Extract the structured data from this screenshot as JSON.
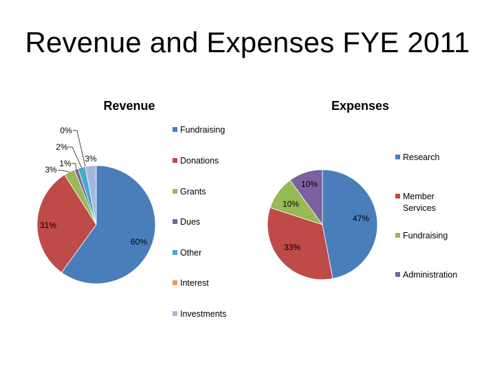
{
  "page": {
    "title": "Revenue and Expenses FYE 2011"
  },
  "chart_data": [
    {
      "type": "pie",
      "title": "Revenue",
      "categories": [
        "Fundraising",
        "Donations",
        "Grants",
        "Dues",
        "Other",
        "Interest",
        "Investments"
      ],
      "values": [
        60,
        31,
        3,
        1,
        2,
        0,
        3
      ],
      "data_labels": [
        "60%",
        "31%",
        "3%",
        "1%",
        "2%",
        "0%",
        "3%"
      ],
      "colors": [
        "#4a7ebb",
        "#be4b48",
        "#98b954",
        "#7d60a0",
        "#46aac5",
        "#f79646",
        "#a4b8dd"
      ],
      "legend": "right"
    },
    {
      "type": "pie",
      "title": "Expenses",
      "categories": [
        "Research",
        "Member\nServices",
        "Fundraising",
        "Administration"
      ],
      "values": [
        47,
        33,
        10,
        10
      ],
      "data_labels": [
        "47%",
        "33%",
        "10%",
        "10%"
      ],
      "colors": [
        "#4a7ebb",
        "#be4b48",
        "#98b954",
        "#7d60a0"
      ],
      "legend": "right"
    }
  ]
}
